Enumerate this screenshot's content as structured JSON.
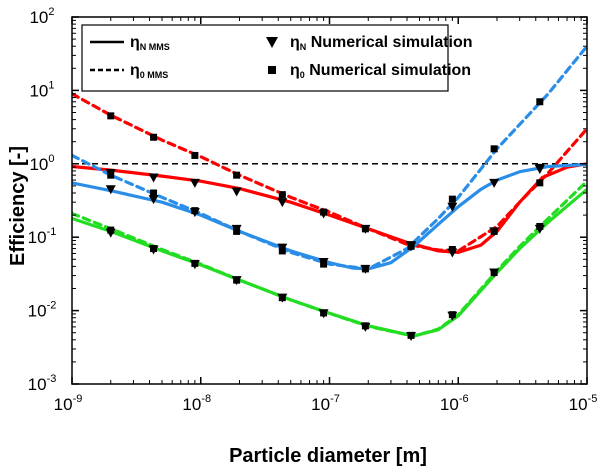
{
  "chart_data": {
    "type": "line",
    "xlabel": "Particle diameter [m]",
    "ylabel": "Efficiency [-]",
    "xscale": "log",
    "yscale": "log",
    "xlim": [
      1e-09,
      1e-05
    ],
    "ylim": [
      0.001,
      100
    ],
    "x_ticks": [
      1e-09,
      1e-08,
      1e-07,
      1e-06,
      1e-05
    ],
    "y_ticks": [
      0.001,
      0.01,
      0.1,
      1,
      10,
      100
    ],
    "x_tick_labels": [
      {
        "base": "10",
        "exp": "-9"
      },
      {
        "base": "10",
        "exp": "-8"
      },
      {
        "base": "10",
        "exp": "-7"
      },
      {
        "base": "10",
        "exp": "-6"
      },
      {
        "base": "10",
        "exp": "-5"
      }
    ],
    "y_tick_labels": [
      {
        "base": "10",
        "exp": "-3"
      },
      {
        "base": "10",
        "exp": "-2"
      },
      {
        "base": "10",
        "exp": "-1"
      },
      {
        "base": "10",
        "exp": "0"
      },
      {
        "base": "10",
        "exp": "1"
      },
      {
        "base": "10",
        "exp": "2"
      }
    ],
    "legend": {
      "placement": "top-left",
      "entries": [
        {
          "style": "solid",
          "symbol": "η",
          "sub": "N MMS",
          "text": ""
        },
        {
          "style": "triangle",
          "symbol": "η",
          "sub": "N",
          "text": "Numerical simulation"
        },
        {
          "style": "dashed",
          "symbol": "η",
          "sub": "0 MMS",
          "text": ""
        },
        {
          "style": "square",
          "symbol": "η",
          "sub": "0",
          "text": "Numerical simulation"
        }
      ]
    },
    "reference_line": {
      "y": 1,
      "style": "dashed",
      "color": "#000000"
    },
    "series": [
      {
        "color": "#ff0000",
        "style": "solid",
        "x": [
          1e-09,
          2e-09,
          5e-09,
          1e-08,
          2e-08,
          5e-08,
          1e-07,
          2e-07,
          4e-07,
          7e-07,
          1e-06,
          1.5e-06,
          2e-06,
          3e-06,
          4.5e-06,
          7e-06,
          1e-05
        ],
        "y": [
          0.92,
          0.82,
          0.68,
          0.58,
          0.46,
          0.3,
          0.2,
          0.13,
          0.085,
          0.065,
          0.062,
          0.078,
          0.12,
          0.3,
          0.65,
          0.9,
          1.0
        ]
      },
      {
        "color": "#ff0000",
        "style": "dashed",
        "x": [
          1e-09,
          2e-09,
          5e-09,
          1e-08,
          2e-08,
          5e-08,
          1e-07,
          2e-07,
          4e-07,
          7e-07,
          1e-06,
          2e-06,
          3e-06,
          5e-06,
          1e-05
        ],
        "y": [
          9.0,
          4.6,
          2.1,
          1.25,
          0.7,
          0.35,
          0.22,
          0.13,
          0.08,
          0.067,
          0.065,
          0.14,
          0.3,
          0.75,
          3.0
        ]
      },
      {
        "color": "#2a8ee8",
        "style": "solid",
        "x": [
          1e-09,
          2e-09,
          5e-09,
          1e-08,
          2e-08,
          5e-08,
          1e-07,
          1.5e-07,
          2e-07,
          3e-07,
          4.5e-07,
          7e-07,
          1e-06,
          1.5e-06,
          2e-06,
          3e-06,
          5e-06,
          1e-05
        ],
        "y": [
          0.55,
          0.43,
          0.3,
          0.2,
          0.12,
          0.065,
          0.045,
          0.038,
          0.037,
          0.045,
          0.075,
          0.15,
          0.26,
          0.45,
          0.6,
          0.78,
          0.92,
          0.98
        ]
      },
      {
        "color": "#2a8ee8",
        "style": "dashed",
        "x": [
          1e-09,
          2e-09,
          5e-09,
          1e-08,
          2e-08,
          5e-08,
          1e-07,
          2e-07,
          4e-07,
          7e-07,
          1e-06,
          2e-06,
          5e-06,
          1e-05
        ],
        "y": [
          1.3,
          0.7,
          0.35,
          0.21,
          0.12,
          0.062,
          0.043,
          0.037,
          0.07,
          0.18,
          0.35,
          1.6,
          9.0,
          40.0
        ]
      },
      {
        "color": "#22dd22",
        "style": "solid",
        "x": [
          1e-09,
          2e-09,
          5e-09,
          1e-08,
          2e-08,
          5e-08,
          1e-07,
          2e-07,
          4.5e-07,
          7e-07,
          1e-06,
          2e-06,
          3e-06,
          5e-06,
          1e-05
        ],
        "y": [
          0.18,
          0.12,
          0.065,
          0.042,
          0.026,
          0.014,
          0.0092,
          0.0062,
          0.0045,
          0.0055,
          0.0085,
          0.033,
          0.07,
          0.16,
          0.45
        ]
      },
      {
        "color": "#22dd22",
        "style": "dashed",
        "x": [
          1e-09,
          2e-09,
          5e-09,
          1e-08,
          2e-08,
          5e-08,
          1e-07,
          2e-07,
          4.5e-07,
          7e-07,
          1e-06,
          2e-06,
          3e-06,
          5e-06,
          1e-05
        ],
        "y": [
          0.21,
          0.13,
          0.068,
          0.043,
          0.026,
          0.014,
          0.0092,
          0.0061,
          0.0045,
          0.0056,
          0.0088,
          0.035,
          0.075,
          0.18,
          0.58
        ]
      },
      {
        "color": "#000000",
        "style": "triangle",
        "x": [
          2e-09,
          4.3e-09,
          9e-09,
          1.9e-08,
          4.3e-08,
          9e-08,
          1.9e-07,
          4.3e-07,
          9e-07,
          1.9e-06,
          4.3e-06,
          2e-09,
          4.3e-09,
          9e-09,
          1.9e-08,
          4.3e-08,
          9e-08,
          1.9e-07,
          4.3e-07,
          9e-07,
          1.9e-06,
          4.3e-06,
          2e-09,
          4.3e-09,
          9e-09,
          1.9e-08,
          4.3e-08,
          9e-08,
          1.9e-07,
          4.3e-07,
          9e-07,
          1.9e-06,
          4.3e-06
        ],
        "y": [
          0.75,
          0.65,
          0.55,
          0.42,
          0.3,
          0.21,
          0.13,
          0.078,
          0.062,
          0.12,
          0.85,
          0.45,
          0.33,
          0.22,
          0.13,
          0.072,
          0.046,
          0.037,
          0.075,
          0.26,
          0.55,
          0.88,
          0.115,
          0.068,
          0.043,
          0.026,
          0.015,
          0.0092,
          0.006,
          0.0045,
          0.0085,
          0.033,
          0.13
        ]
      },
      {
        "color": "#000000",
        "style": "square",
        "x": [
          2e-09,
          4.3e-09,
          9e-09,
          1.9e-08,
          4.3e-08,
          9e-08,
          1.9e-07,
          4.3e-07,
          9e-07,
          1.9e-06,
          4.3e-06,
          2e-09,
          4.3e-09,
          9e-09,
          1.9e-08,
          4.3e-08,
          9e-08,
          1.9e-07,
          4.3e-07,
          9e-07,
          1.9e-06,
          4.3e-06,
          2e-09,
          4.3e-09,
          9e-09,
          1.9e-08,
          4.3e-08,
          9e-08,
          1.9e-07,
          4.3e-07,
          9e-07,
          1.9e-06,
          4.3e-06
        ],
        "y": [
          4.5,
          2.3,
          1.3,
          0.7,
          0.38,
          0.22,
          0.13,
          0.077,
          0.068,
          0.12,
          0.55,
          0.7,
          0.4,
          0.23,
          0.12,
          0.065,
          0.043,
          0.037,
          0.075,
          0.33,
          1.6,
          7.0,
          0.125,
          0.07,
          0.044,
          0.026,
          0.015,
          0.0093,
          0.0062,
          0.0046,
          0.0088,
          0.033,
          0.14
        ]
      }
    ]
  }
}
